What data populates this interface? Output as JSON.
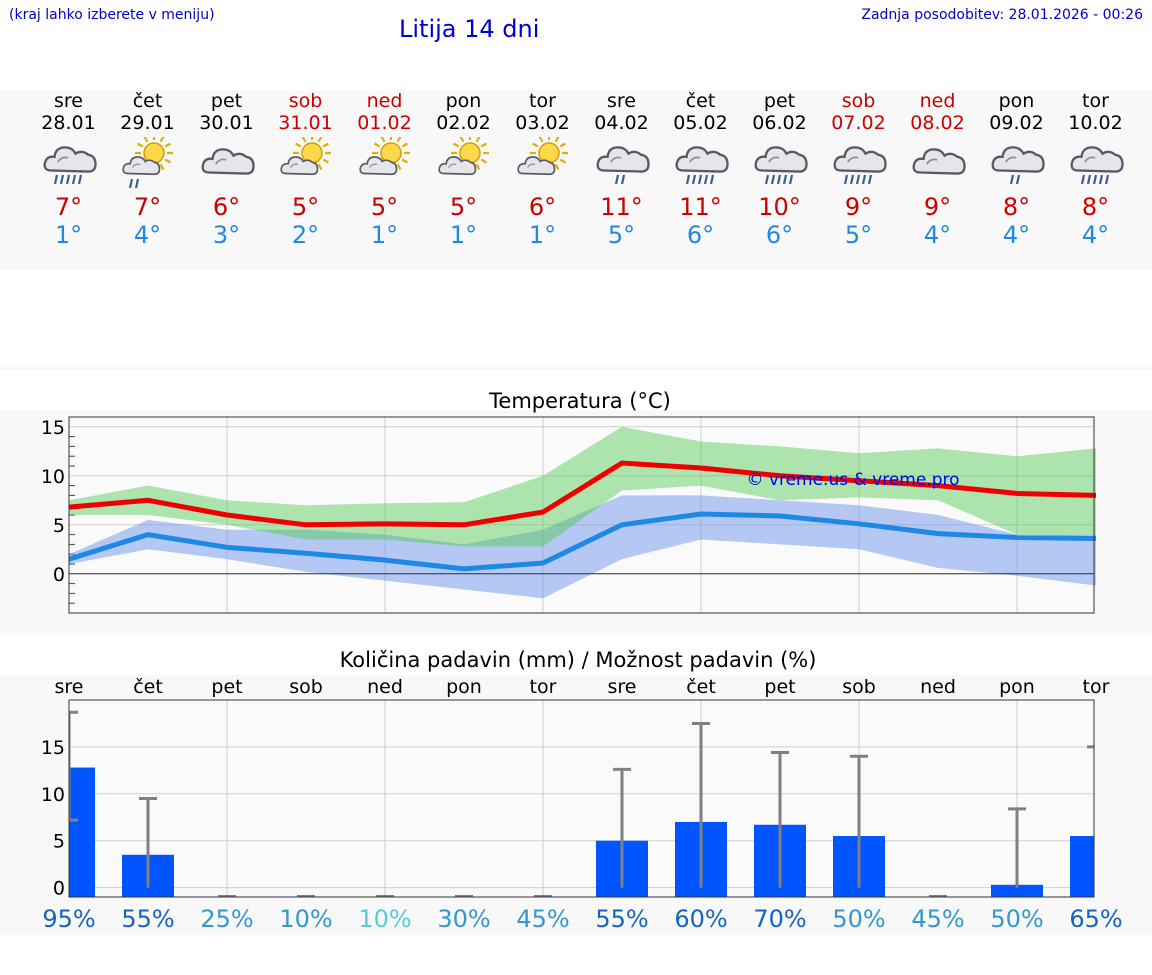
{
  "header": {
    "hint": "(kraj lahko izberete v meniju)",
    "title": "Litija 14 dni",
    "updated": "Zadnja posodobitev: 28.01.2026 - 00:26"
  },
  "watermark": "© vreme.us & vreme.pro",
  "colors": {
    "max": "#cc0000",
    "min": "#1e88e5",
    "weekend": "#cc0000",
    "bar": "#0055ff"
  },
  "days": [
    {
      "name": "sre",
      "date": "28.01",
      "weekend": false,
      "icon": "rain-icon",
      "max": "7°",
      "min": "1°"
    },
    {
      "name": "čet",
      "date": "29.01",
      "weekend": false,
      "icon": "sun-rain-icon",
      "max": "7°",
      "min": "4°"
    },
    {
      "name": "pet",
      "date": "30.01",
      "weekend": false,
      "icon": "cloud-icon",
      "max": "6°",
      "min": "3°"
    },
    {
      "name": "sob",
      "date": "31.01",
      "weekend": true,
      "icon": "partly-sunny-icon",
      "max": "5°",
      "min": "2°"
    },
    {
      "name": "ned",
      "date": "01.02",
      "weekend": true,
      "icon": "partly-sunny-icon",
      "max": "5°",
      "min": "1°"
    },
    {
      "name": "pon",
      "date": "02.02",
      "weekend": false,
      "icon": "partly-sunny-icon",
      "max": "5°",
      "min": "1°"
    },
    {
      "name": "tor",
      "date": "03.02",
      "weekend": false,
      "icon": "partly-sunny-icon",
      "max": "6°",
      "min": "1°"
    },
    {
      "name": "sre",
      "date": "04.02",
      "weekend": false,
      "icon": "light-rain-icon",
      "max": "11°",
      "min": "5°"
    },
    {
      "name": "čet",
      "date": "05.02",
      "weekend": false,
      "icon": "rain-icon",
      "max": "11°",
      "min": "6°"
    },
    {
      "name": "pet",
      "date": "06.02",
      "weekend": false,
      "icon": "rain-icon",
      "max": "10°",
      "min": "6°"
    },
    {
      "name": "sob",
      "date": "07.02",
      "weekend": true,
      "icon": "rain-icon",
      "max": "9°",
      "min": "5°"
    },
    {
      "name": "ned",
      "date": "08.02",
      "weekend": true,
      "icon": "cloud-icon",
      "max": "9°",
      "min": "4°"
    },
    {
      "name": "pon",
      "date": "09.02",
      "weekend": false,
      "icon": "light-rain-icon",
      "max": "8°",
      "min": "4°"
    },
    {
      "name": "tor",
      "date": "10.02",
      "weekend": false,
      "icon": "rain-icon",
      "max": "8°",
      "min": "4°"
    }
  ],
  "chart_data": [
    {
      "type": "line",
      "title": "Temperatura (°C)",
      "ylim": [
        -4,
        16
      ],
      "yticks": [
        0,
        5,
        10,
        15
      ],
      "x": [
        0,
        1,
        2,
        3,
        4,
        5,
        6,
        7,
        8,
        9,
        10,
        11,
        12,
        13
      ],
      "series": [
        {
          "name": "max",
          "color": "#ee0000",
          "values": [
            6.8,
            7.5,
            6.0,
            5.0,
            5.1,
            5.0,
            6.3,
            11.3,
            10.8,
            10.0,
            9.5,
            9.0,
            8.2,
            8.0
          ]
        },
        {
          "name": "max_high",
          "values": [
            7.5,
            9.0,
            7.5,
            7.0,
            7.2,
            7.3,
            10.0,
            15.0,
            13.5,
            13.0,
            12.3,
            12.8,
            12.0,
            12.8
          ]
        },
        {
          "name": "max_low",
          "values": [
            6.0,
            6.0,
            5.0,
            3.5,
            3.5,
            2.8,
            2.8,
            8.5,
            9.0,
            7.5,
            7.8,
            7.5,
            4.0,
            4.0
          ]
        },
        {
          "name": "min",
          "color": "#1e88e5",
          "values": [
            1.5,
            4.0,
            2.7,
            2.1,
            1.4,
            0.5,
            1.1,
            5.0,
            6.1,
            5.9,
            5.1,
            4.1,
            3.7,
            3.6
          ]
        },
        {
          "name": "min_high",
          "values": [
            2.0,
            5.5,
            4.5,
            4.5,
            4.0,
            3.0,
            4.5,
            8.0,
            8.0,
            7.5,
            7.0,
            6.0,
            4.0,
            4.0
          ]
        },
        {
          "name": "min_low",
          "values": [
            1.0,
            2.5,
            1.5,
            0.2,
            -0.7,
            -1.6,
            -2.5,
            1.5,
            3.5,
            3.0,
            2.5,
            0.6,
            -0.2,
            -1.2
          ]
        }
      ]
    },
    {
      "type": "bar",
      "title": "Količina padavin (mm) / Možnost padavin (%)",
      "ylim": [
        -1,
        20
      ],
      "yticks": [
        0,
        5,
        10,
        15
      ],
      "categories": [
        "sre",
        "čet",
        "pet",
        "sob",
        "ned",
        "pon",
        "tor",
        "sre",
        "čet",
        "pet",
        "sob",
        "ned",
        "pon",
        "tor"
      ],
      "values": [
        12.8,
        3.5,
        0,
        0,
        0,
        0,
        0,
        5.0,
        7.0,
        6.7,
        5.5,
        0,
        0.3,
        5.5
      ],
      "err_high": [
        18.7,
        9.5,
        0,
        0,
        0,
        0,
        0,
        12.6,
        17.5,
        14.4,
        14.0,
        0,
        8.4,
        15.0
      ],
      "err_low": [
        7.2,
        0,
        0,
        0,
        0,
        0,
        0,
        0,
        0,
        0,
        0,
        0,
        0,
        0
      ],
      "probability": [
        "95%",
        "55%",
        "25%",
        "10%",
        "10%",
        "30%",
        "45%",
        "55%",
        "60%",
        "70%",
        "50%",
        "45%",
        "50%",
        "65%"
      ],
      "probability_colors": [
        "#1565c0",
        "#1565c0",
        "#3399cc",
        "#3399cc",
        "#55ccdd",
        "#3399cc",
        "#3399cc",
        "#1565c0",
        "#1565c0",
        "#1565c0",
        "#3399cc",
        "#3399cc",
        "#3399cc",
        "#1565c0"
      ]
    }
  ]
}
